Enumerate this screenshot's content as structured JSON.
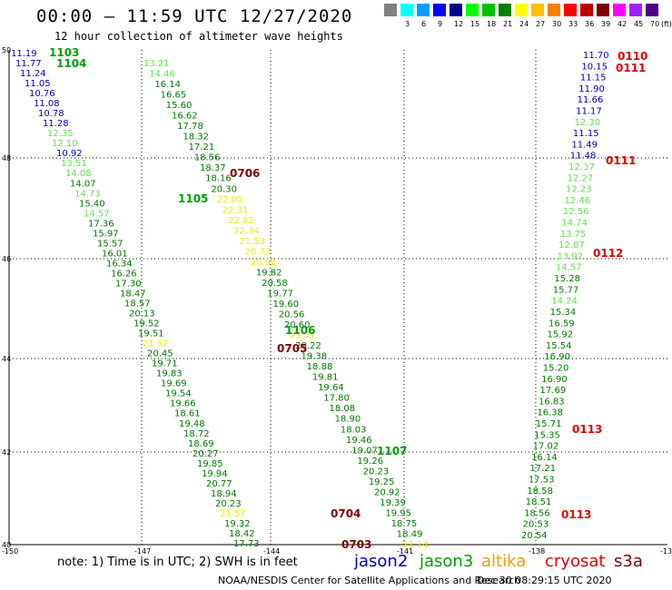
{
  "header": {
    "title": "00:00 — 11:59 UTC 12/27/2020",
    "subtitle": "12 hour collection of altimeter wave heights"
  },
  "legend": {
    "unit": "(ft)",
    "bins": [
      {
        "color": "#808080",
        "label": ""
      },
      {
        "color": "#00ffff",
        "label": "3"
      },
      {
        "color": "#00a0ff",
        "label": "6"
      },
      {
        "color": "#0000ff",
        "label": "9"
      },
      {
        "color": "#000090",
        "label": "12"
      },
      {
        "color": "#00ff00",
        "label": "15"
      },
      {
        "color": "#00c000",
        "label": "18"
      },
      {
        "color": "#008000",
        "label": "21"
      },
      {
        "color": "#ffff00",
        "label": "24"
      },
      {
        "color": "#ffc000",
        "label": "27"
      },
      {
        "color": "#ff8000",
        "label": "30"
      },
      {
        "color": "#ff0000",
        "label": "33"
      },
      {
        "color": "#c00000",
        "label": "36"
      },
      {
        "color": "#800000",
        "label": "39"
      },
      {
        "color": "#ff00ff",
        "label": "42"
      },
      {
        "color": "#a020f0",
        "label": "45"
      },
      {
        "color": "#500080",
        "label": "70"
      }
    ]
  },
  "colors": {
    "jason2": "#0000c0",
    "jason3": "#00a000",
    "altika": "#ff9900",
    "cryosat": "#e00000",
    "s3a": "#800000",
    "light_green": "#66dd55",
    "yellow": "#eeee00",
    "dark_green": "#007700",
    "grid": "#000000"
  },
  "axes": {
    "lon_labels": [
      "-150",
      "-147",
      "-144",
      "-141",
      "-138",
      "-13"
    ],
    "lat_labels": [
      "50",
      "48",
      "46",
      "44",
      "42",
      "40"
    ]
  },
  "chart_data": {
    "type": "scatter",
    "tracks": [
      {
        "name": "1103",
        "labels": [
          [
            "11.19",
            "j2"
          ],
          [
            "11.77",
            "j2"
          ],
          [
            "11.24",
            "j2"
          ],
          [
            "11.05",
            "j2"
          ],
          [
            "10.76",
            "j2"
          ],
          [
            "11.08",
            "j2"
          ],
          [
            "10.78",
            "j2"
          ],
          [
            "11.28",
            "j2"
          ],
          [
            "12.35",
            "lg"
          ],
          [
            "12.10",
            "lg"
          ],
          [
            "10.92",
            "j2"
          ],
          [
            "13.51",
            "lg"
          ],
          [
            "14.08",
            "lg"
          ],
          [
            "14.07",
            "dg"
          ],
          [
            "14.73",
            "lg"
          ],
          [
            "15.40",
            "dg"
          ],
          [
            "14.57",
            "lg"
          ],
          [
            "17.36",
            "dg"
          ],
          [
            "15.97",
            "dg"
          ],
          [
            "15.57",
            "dg"
          ],
          [
            "16.01",
            "dg"
          ],
          [
            "16.34",
            "dg"
          ],
          [
            "16.26",
            "dg"
          ],
          [
            "17.30",
            "dg"
          ],
          [
            "18.47",
            "dg"
          ],
          [
            "18.57",
            "dg"
          ],
          [
            "20.13",
            "dg"
          ],
          [
            "19.52",
            "dg"
          ],
          [
            "19.51",
            "dg"
          ],
          [
            "21.52",
            "ye"
          ],
          [
            "20.45",
            "dg"
          ],
          [
            "19.71",
            "dg"
          ],
          [
            "19.83",
            "dg"
          ],
          [
            "19.69",
            "dg"
          ],
          [
            "19.54",
            "dg"
          ],
          [
            "19.66",
            "dg"
          ],
          [
            "18.61",
            "dg"
          ],
          [
            "19.48",
            "dg"
          ],
          [
            "18.72",
            "dg"
          ],
          [
            "18.69",
            "dg"
          ],
          [
            "20.27",
            "dg"
          ],
          [
            "19.85",
            "dg"
          ],
          [
            "19.94",
            "dg"
          ],
          [
            "20.77",
            "dg"
          ],
          [
            "18.94",
            "dg"
          ],
          [
            "20.23",
            "dg"
          ],
          [
            "21.57",
            "ye"
          ],
          [
            "19.32",
            "dg"
          ],
          [
            "18.42",
            "dg"
          ],
          [
            "17.73",
            "dg"
          ]
        ]
      },
      {
        "name": "1104",
        "labels": [
          [
            "13.21",
            "lg"
          ],
          [
            "14.46",
            "lg"
          ],
          [
            "16.14",
            "dg"
          ],
          [
            "16.65",
            "dg"
          ],
          [
            "15.60",
            "dg"
          ],
          [
            "16.62",
            "dg"
          ],
          [
            "17.78",
            "dg"
          ],
          [
            "18.32",
            "dg"
          ],
          [
            "17.21",
            "dg"
          ],
          [
            "18.56",
            "dg"
          ],
          [
            "18.37",
            "dg"
          ],
          [
            "18.16",
            "dg"
          ],
          [
            "20.30",
            "dg"
          ],
          [
            "22.00",
            "ye"
          ],
          [
            "22.31",
            "ye"
          ],
          [
            "22.82",
            "ye"
          ],
          [
            "22.34",
            "ye"
          ],
          [
            "21.53",
            "ye"
          ],
          [
            "20.73",
            "ye"
          ],
          [
            "20.92",
            "ye"
          ],
          [
            "19.82",
            "dg"
          ],
          [
            "20.58",
            "dg"
          ],
          [
            "19.77",
            "dg"
          ],
          [
            "19.60",
            "dg"
          ],
          [
            "20.56",
            "dg"
          ],
          [
            "20.60",
            "dg"
          ],
          [
            "21.71",
            "ye"
          ],
          [
            "20.22",
            "dg"
          ],
          [
            "19.38",
            "dg"
          ],
          [
            "18.88",
            "dg"
          ],
          [
            "19.81",
            "dg"
          ],
          [
            "19.64",
            "dg"
          ],
          [
            "17.80",
            "dg"
          ],
          [
            "18.08",
            "dg"
          ],
          [
            "18.90",
            "dg"
          ],
          [
            "18.03",
            "dg"
          ],
          [
            "19.46",
            "dg"
          ],
          [
            "19.07",
            "dg"
          ],
          [
            "19.26",
            "dg"
          ],
          [
            "20.23",
            "dg"
          ],
          [
            "19.25",
            "dg"
          ],
          [
            "20.92",
            "dg"
          ],
          [
            "19.39",
            "dg"
          ],
          [
            "19.95",
            "dg"
          ],
          [
            "18.75",
            "dg"
          ],
          [
            "18.49",
            "dg"
          ],
          [
            "21.14",
            "ye"
          ]
        ]
      },
      {
        "name": "0110",
        "labels": [
          [
            "11.70",
            "j2"
          ],
          [
            "10.15",
            "j2"
          ],
          [
            "11.15",
            "j2"
          ],
          [
            "11.90",
            "j2"
          ],
          [
            "11.66",
            "j2"
          ],
          [
            "11.17",
            "j2"
          ],
          [
            "12.30",
            "lg"
          ],
          [
            "11.15",
            "j2"
          ],
          [
            "11.49",
            "j2"
          ],
          [
            "11.48",
            "j2"
          ],
          [
            "12.37",
            "lg"
          ],
          [
            "12.27",
            "lg"
          ],
          [
            "12.23",
            "lg"
          ],
          [
            "12.46",
            "lg"
          ],
          [
            "12.56",
            "lg"
          ],
          [
            "14.74",
            "lg"
          ],
          [
            "13.75",
            "lg"
          ],
          [
            "12.87",
            "lg"
          ],
          [
            "13.92",
            "lg"
          ],
          [
            "14.57",
            "lg"
          ],
          [
            "15.28",
            "dg"
          ],
          [
            "15.77",
            "dg"
          ],
          [
            "14.24",
            "lg"
          ],
          [
            "15.34",
            "dg"
          ],
          [
            "16.59",
            "dg"
          ],
          [
            "15.92",
            "dg"
          ],
          [
            "15.54",
            "dg"
          ],
          [
            "16.90",
            "dg"
          ],
          [
            "15.20",
            "dg"
          ],
          [
            "16.90",
            "dg"
          ],
          [
            "17.69",
            "dg"
          ],
          [
            "16.83",
            "dg"
          ],
          [
            "16.38",
            "dg"
          ],
          [
            "15.71",
            "dg"
          ],
          [
            "15.35",
            "dg"
          ],
          [
            "17.02",
            "dg"
          ],
          [
            "16.14",
            "dg"
          ],
          [
            "17.21",
            "dg"
          ],
          [
            "17.53",
            "dg"
          ],
          [
            "18.58",
            "dg"
          ],
          [
            "18.51",
            "dg"
          ],
          [
            "18.56",
            "dg"
          ],
          [
            "20.53",
            "dg"
          ],
          [
            "20.54",
            "dg"
          ]
        ]
      }
    ],
    "pass_ids": [
      [
        "1103",
        "j3"
      ],
      [
        "1104",
        "j3"
      ],
      [
        "0706",
        "s3"
      ],
      [
        "1105",
        "j3"
      ],
      [
        "1106",
        "j3"
      ],
      [
        "0705",
        "s3"
      ],
      [
        "1107",
        "j3"
      ],
      [
        "0704",
        "s3"
      ],
      [
        "0703",
        "s3"
      ],
      [
        "0110",
        "cr"
      ],
      [
        "0111",
        "cr"
      ],
      [
        "0111",
        "cr"
      ],
      [
        "0112",
        "cr"
      ],
      [
        "0113",
        "cr"
      ],
      [
        "0113",
        "cr"
      ]
    ]
  },
  "footer": {
    "note": "note: 1) Time is in UTC; 2) SWH is in feet",
    "sat_jason2": "jason2",
    "sat_jason3": "jason3",
    "sat_altika": "altika",
    "sat_cryosat": "cryosat",
    "sat_s3a": "s3a",
    "credit": "NOAA/NESDIS Center for Satellite Applications and Research",
    "timestamp": "Dec 30 08:29:15 UTC 2020"
  }
}
